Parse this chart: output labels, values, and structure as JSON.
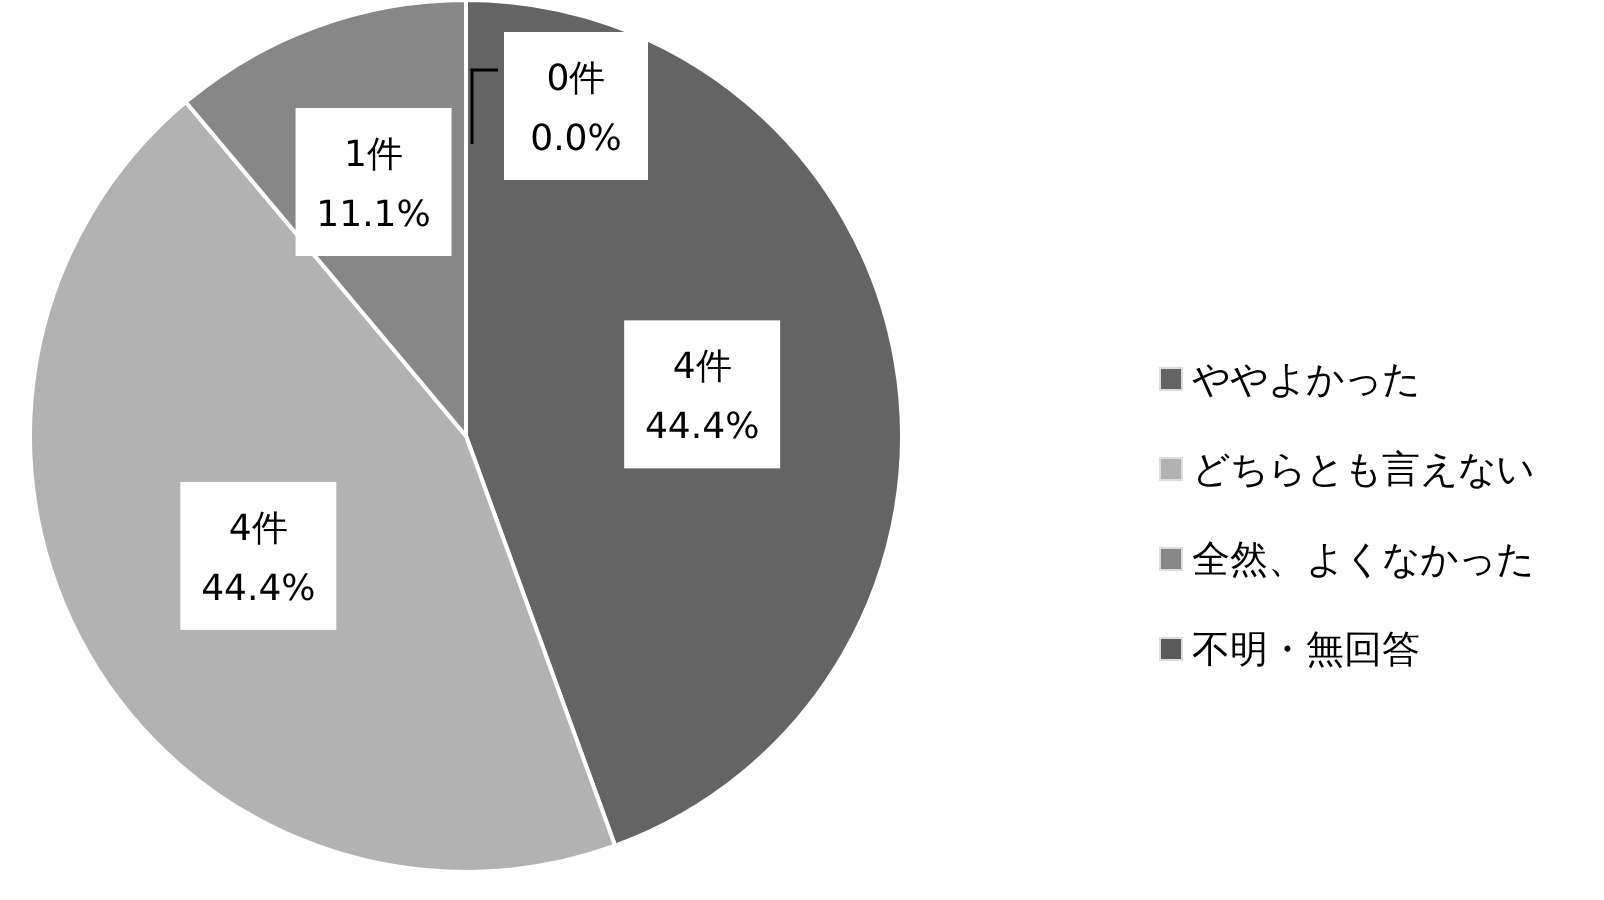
{
  "chart_data": {
    "type": "pie",
    "categories": [
      "ややよかった",
      "どちらとも言えない",
      "全然、よくなかった",
      "不明・無回答"
    ],
    "values": [
      4,
      4,
      1,
      0
    ],
    "colors": [
      "#646464",
      "#b2b2b2",
      "#878787",
      "#5a5a5a"
    ],
    "value_labels": [
      "4件\n44.4%",
      "4件\n44.4%",
      "1件\n11.1%",
      "0件\n0.0%"
    ],
    "legend": "right"
  }
}
